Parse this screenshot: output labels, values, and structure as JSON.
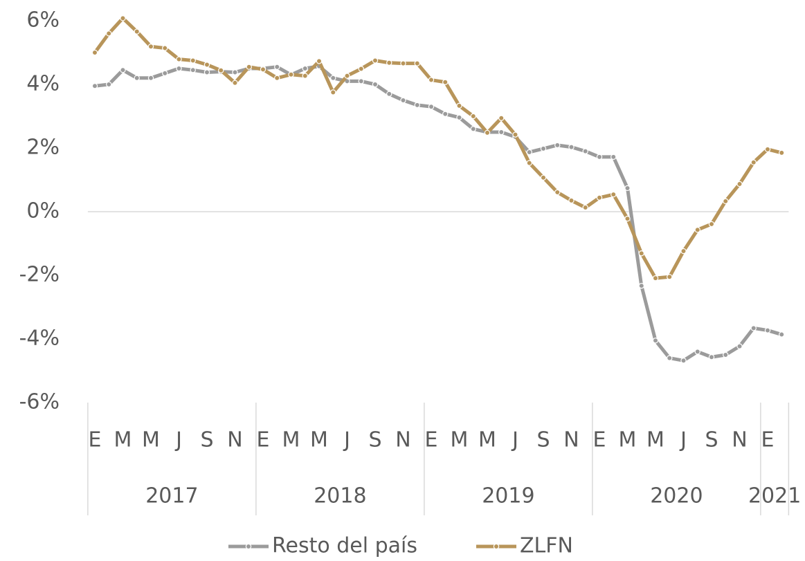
{
  "chart_data": {
    "type": "line",
    "categories": [
      "E",
      null,
      "M",
      null,
      "M",
      null,
      "J",
      null,
      "S",
      null,
      "N",
      null,
      "E",
      null,
      "M",
      null,
      "M",
      null,
      "J",
      null,
      "S",
      null,
      "N",
      null,
      "E",
      null,
      "M",
      null,
      "M",
      null,
      "J",
      null,
      "S",
      null,
      "N",
      null,
      "E",
      null,
      "M",
      null,
      "M",
      null,
      "J",
      null,
      "S",
      null,
      "N",
      null,
      "E",
      null
    ],
    "x_groups": [
      "2017",
      "2018",
      "2019",
      "2020",
      "2021"
    ],
    "series": [
      {
        "name": "Resto del país",
        "color": "#9b9b9b",
        "values": [
          3.95,
          4.0,
          4.45,
          4.2,
          4.2,
          4.35,
          4.5,
          4.45,
          4.38,
          4.4,
          4.38,
          4.5,
          4.5,
          4.55,
          4.3,
          4.5,
          4.57,
          4.2,
          4.1,
          4.1,
          4.0,
          3.7,
          3.5,
          3.35,
          3.3,
          3.07,
          2.96,
          2.6,
          2.5,
          2.5,
          2.35,
          1.87,
          1.98,
          2.09,
          2.03,
          1.9,
          1.72,
          1.72,
          0.74,
          -2.33,
          -4.05,
          -4.6,
          -4.68,
          -4.4,
          -4.57,
          -4.5,
          -4.23,
          -3.66,
          -3.73,
          -3.86
        ]
      },
      {
        "name": "ZLFN",
        "color": "#b8955a",
        "values": [
          5.0,
          5.6,
          6.08,
          5.66,
          5.19,
          5.14,
          4.79,
          4.75,
          4.62,
          4.44,
          4.05,
          4.55,
          4.47,
          4.2,
          4.31,
          4.27,
          4.73,
          3.75,
          4.27,
          4.49,
          4.75,
          4.68,
          4.66,
          4.66,
          4.14,
          4.07,
          3.33,
          3.0,
          2.48,
          2.94,
          2.42,
          1.53,
          1.07,
          0.61,
          0.35,
          0.13,
          0.44,
          0.54,
          -0.22,
          -1.31,
          -2.09,
          -2.05,
          -1.24,
          -0.57,
          -0.39,
          0.33,
          0.87,
          1.55,
          1.96,
          1.85
        ]
      }
    ],
    "ylim": [
      -6,
      6
    ],
    "yticks": [
      {
        "value": -6,
        "label": "-6%"
      },
      {
        "value": -4,
        "label": "-4%"
      },
      {
        "value": -2,
        "label": "-2%"
      },
      {
        "value": 0,
        "label": "0%"
      },
      {
        "value": 2,
        "label": "2%"
      },
      {
        "value": 4,
        "label": "4%"
      },
      {
        "value": 6,
        "label": "6%"
      }
    ],
    "legend": "bottom"
  }
}
